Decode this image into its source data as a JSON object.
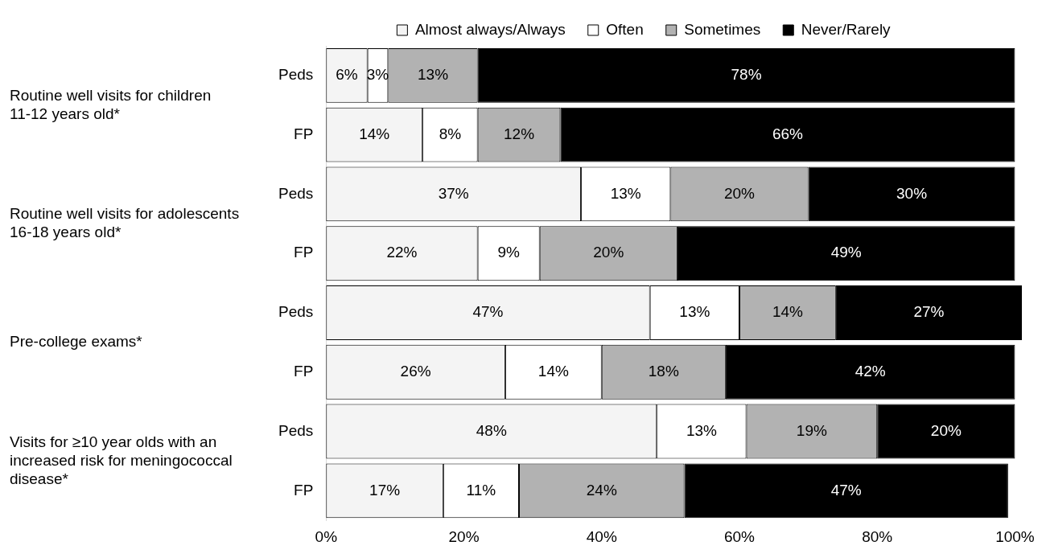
{
  "chart_data": {
    "type": "bar",
    "orientation": "horizontal",
    "stacked": true,
    "categories": [
      "Peds",
      "FP",
      "Peds",
      "FP",
      "Peds",
      "FP",
      "Peds",
      "FP"
    ],
    "series": [
      {
        "name": "Almost always/Always",
        "color": "#f4f4f4",
        "values": [
          6,
          14,
          37,
          22,
          47,
          26,
          48,
          17
        ],
        "value_labels": [
          "6%",
          "14%",
          "37%",
          "22%",
          "47%",
          "26%",
          "48%",
          "17%"
        ]
      },
      {
        "name": "Often",
        "color": "#ffffff",
        "values": [
          3,
          8,
          13,
          9,
          13,
          14,
          13,
          11
        ],
        "value_labels": [
          "3%",
          "8%",
          "13%",
          "9%",
          "13%",
          "14%",
          "13%",
          "11%"
        ]
      },
      {
        "name": "Sometimes",
        "color": "#b2b2b2",
        "values": [
          13,
          12,
          20,
          20,
          14,
          18,
          19,
          24
        ],
        "value_labels": [
          "13%",
          "12%",
          "20%",
          "20%",
          "14%",
          "18%",
          "19%",
          "24%"
        ]
      },
      {
        "name": "Never/Rarely",
        "color": "#000000",
        "values": [
          78,
          66,
          30,
          49,
          27,
          42,
          20,
          47
        ],
        "value_labels": [
          "78%",
          "66%",
          "30%",
          "49%",
          "27%",
          "42%",
          "20%",
          "47%"
        ]
      }
    ],
    "xlim": [
      0,
      101
    ],
    "xticks": [
      {
        "value": 0,
        "label": "0%"
      },
      {
        "value": 20,
        "label": "20%"
      },
      {
        "value": 40,
        "label": "40%"
      },
      {
        "value": 60,
        "label": "60%"
      },
      {
        "value": 80,
        "label": "80%"
      },
      {
        "value": 100,
        "label": "100%"
      }
    ],
    "legend": "top",
    "grid": false,
    "annotations": [
      "Routine well visits for children 11-12 years old*",
      "Routine well visits for adolescents 16-18 years old*",
      "Pre-college exams*",
      "Visits for ≥10 year olds with an increased risk for meningococcal disease*"
    ]
  }
}
